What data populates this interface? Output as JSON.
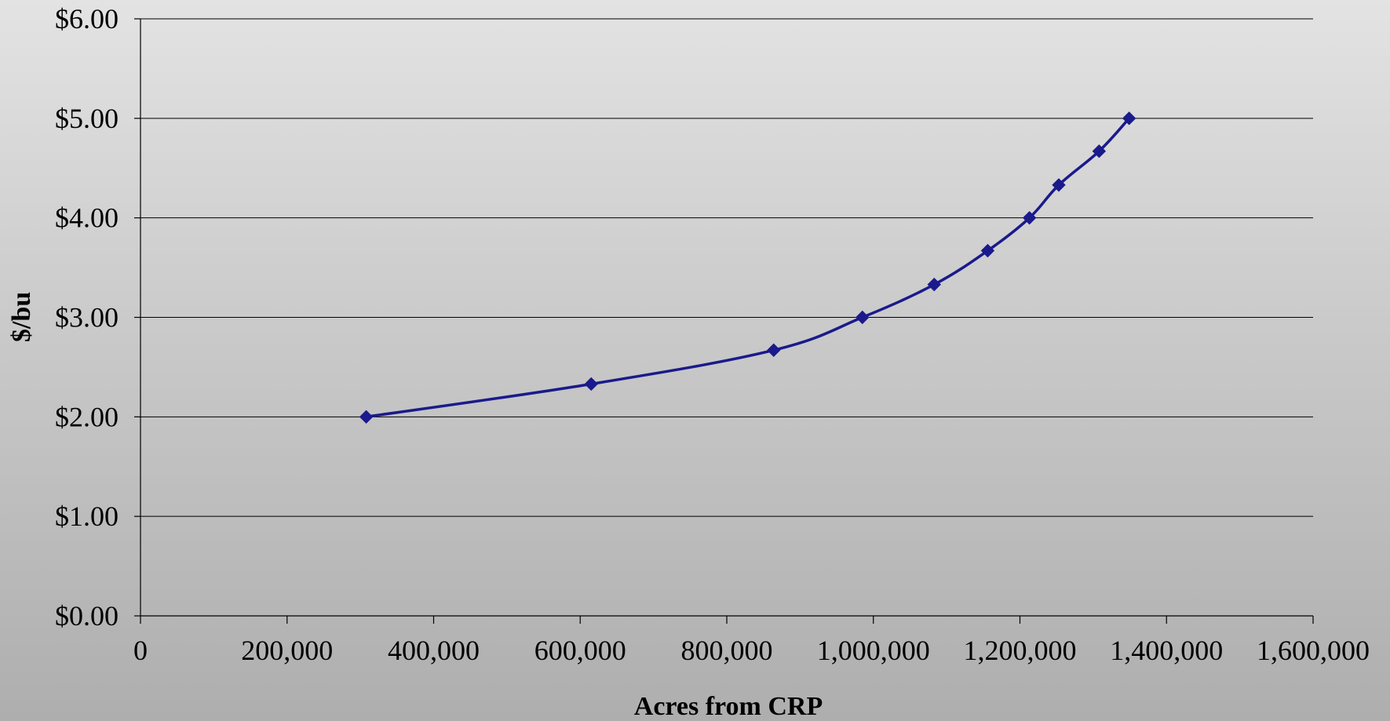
{
  "chart_data": {
    "type": "line",
    "title": "",
    "xlabel": "Acres from CRP",
    "ylabel": "$/bu",
    "xlim": [
      0,
      1600000
    ],
    "ylim": [
      0,
      6
    ],
    "x_ticks": [
      0,
      200000,
      400000,
      600000,
      800000,
      1000000,
      1200000,
      1400000,
      1600000
    ],
    "x_tick_labels": [
      "0",
      "200,000",
      "400,000",
      "600,000",
      "800,000",
      "1,000,000",
      "1,200,000",
      "1,400,000",
      "1,600,000"
    ],
    "y_ticks": [
      0,
      1,
      2,
      3,
      4,
      5,
      6
    ],
    "y_tick_labels": [
      "$0.00",
      "$1.00",
      "$2.00",
      "$3.00",
      "$4.00",
      "$5.00",
      "$6.00"
    ],
    "grid": "horizontal",
    "legend": "none",
    "series": [
      {
        "color": "#1a1a8c",
        "marker": "diamond",
        "points": [
          {
            "x": 308000,
            "y": 2.0
          },
          {
            "x": 615000,
            "y": 2.33
          },
          {
            "x": 864000,
            "y": 2.67
          },
          {
            "x": 985000,
            "y": 3.0
          },
          {
            "x": 1083000,
            "y": 3.33
          },
          {
            "x": 1156000,
            "y": 3.67
          },
          {
            "x": 1213000,
            "y": 4.0
          },
          {
            "x": 1253000,
            "y": 4.33
          },
          {
            "x": 1308000,
            "y": 4.67
          },
          {
            "x": 1349000,
            "y": 5.0
          }
        ]
      }
    ]
  }
}
